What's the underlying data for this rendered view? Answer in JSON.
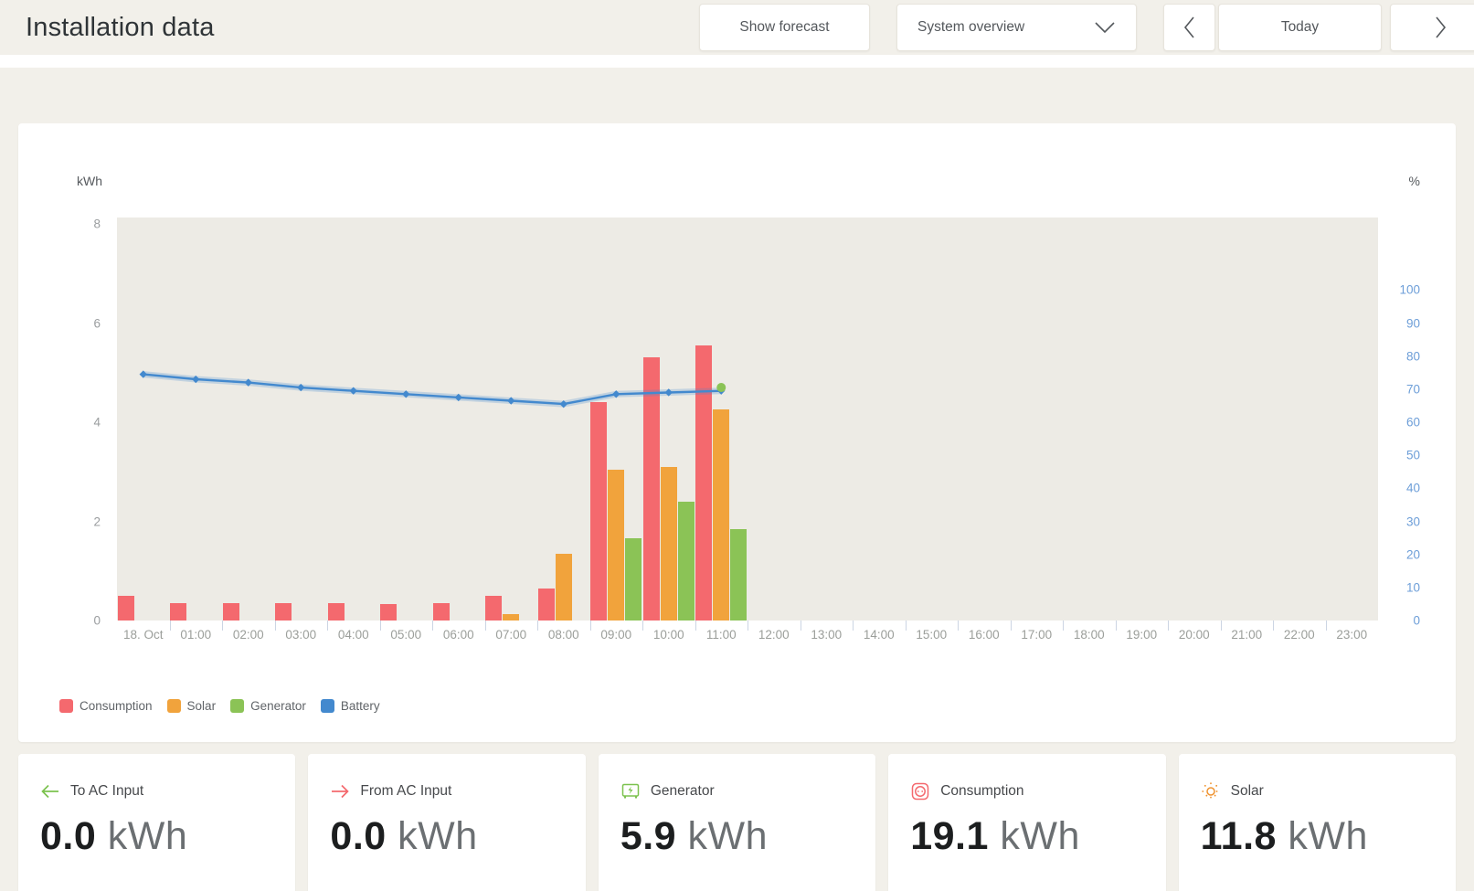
{
  "header": {
    "title": "Installation data",
    "show_forecast_label": "Show forecast",
    "system_overview_label": "System overview",
    "today_label": "Today"
  },
  "chart_data": {
    "type": "bar",
    "title": "",
    "categories": [
      "18. Oct",
      "01:00",
      "02:00",
      "03:00",
      "04:00",
      "05:00",
      "06:00",
      "07:00",
      "08:00",
      "09:00",
      "10:00",
      "11:00",
      "12:00",
      "13:00",
      "14:00",
      "15:00",
      "16:00",
      "17:00",
      "18:00",
      "19:00",
      "20:00",
      "21:00",
      "22:00",
      "23:00"
    ],
    "y_left": {
      "unit": "kWh",
      "ticks": [
        0,
        2,
        4,
        6,
        8
      ],
      "max": 8
    },
    "y_right": {
      "unit": "%",
      "ticks": [
        0,
        10,
        20,
        30,
        40,
        50,
        60,
        70,
        80,
        90,
        100
      ],
      "max": 100,
      "top_fraction": 0.82
    },
    "grid": "off",
    "legend_position": "bottom-left",
    "series": [
      {
        "name": "Consumption",
        "type": "bar",
        "unit": "kWh",
        "color": "#f4696e",
        "values": [
          0.5,
          0.35,
          0.35,
          0.35,
          0.35,
          0.33,
          0.35,
          0.5,
          0.65,
          4.4,
          5.3,
          5.55,
          null,
          null,
          null,
          null,
          null,
          null,
          null,
          null,
          null,
          null,
          null,
          null
        ]
      },
      {
        "name": "Solar",
        "type": "bar",
        "unit": "kWh",
        "color": "#f1a33c",
        "values": [
          0,
          0,
          0,
          0,
          0,
          0,
          0,
          0.13,
          1.35,
          3.05,
          3.1,
          4.25,
          null,
          null,
          null,
          null,
          null,
          null,
          null,
          null,
          null,
          null,
          null,
          null
        ]
      },
      {
        "name": "Generator",
        "type": "bar",
        "unit": "kWh",
        "color": "#8bc356",
        "values": [
          0,
          0,
          0,
          0,
          0,
          0,
          0,
          0,
          0,
          1.65,
          2.4,
          1.85,
          null,
          null,
          null,
          null,
          null,
          null,
          null,
          null,
          null,
          null,
          null,
          null
        ]
      },
      {
        "name": "Battery",
        "type": "line",
        "unit": "%",
        "color": "#4389ce",
        "values": [
          74.5,
          73,
          72,
          70.5,
          69.5,
          68.5,
          67.5,
          66.5,
          65.5,
          68.5,
          69,
          69.5,
          null,
          null,
          null,
          null,
          null,
          null,
          null,
          null,
          null,
          null,
          null,
          null
        ]
      }
    ],
    "forecast_marker": {
      "index": 11,
      "value": 70.5,
      "color": "#8bc356"
    }
  },
  "cards": [
    {
      "label": "To AC Input",
      "value": "0.0",
      "unit": "kWh"
    },
    {
      "label": "From AC Input",
      "value": "0.0",
      "unit": "kWh"
    },
    {
      "label": "Generator",
      "value": "5.9",
      "unit": "kWh"
    },
    {
      "label": "Consumption",
      "value": "19.1",
      "unit": "kWh"
    },
    {
      "label": "Solar",
      "value": "11.8",
      "unit": "kWh"
    }
  ]
}
